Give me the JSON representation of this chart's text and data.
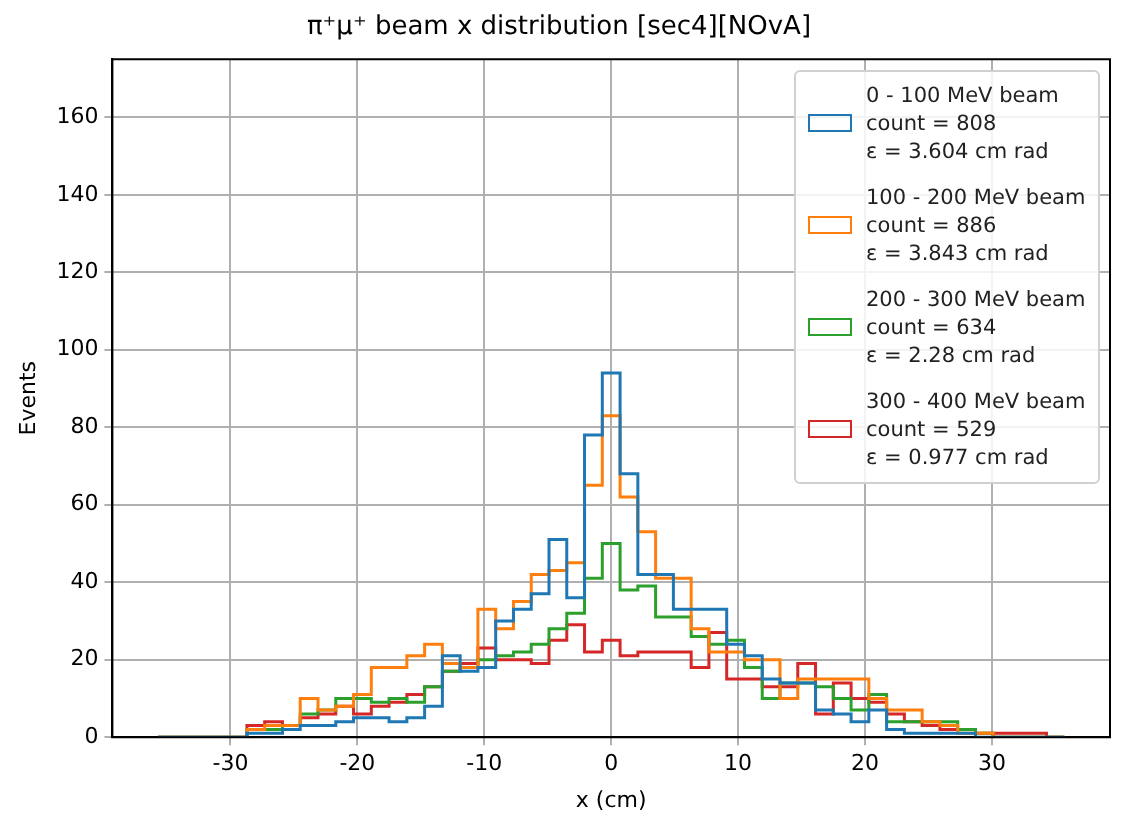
{
  "chart_data": {
    "type": "histogram",
    "title": "π⁺μ⁺ beam x distribution [sec4][NOvA]",
    "xlabel": "x (cm)",
    "ylabel": "Events",
    "bins": [
      -35.7,
      -34.3,
      -32.9,
      -31.5,
      -30.1,
      -28.7,
      -27.3,
      -25.9,
      -24.5,
      -23.1,
      -21.7,
      -20.3,
      -18.9,
      -17.5,
      -16.1,
      -14.7,
      -13.3,
      -11.9,
      -10.5,
      -9.1,
      -7.7,
      -6.3,
      -4.9,
      -3.5,
      -2.1,
      -0.7,
      0.7,
      2.1,
      3.5,
      4.9,
      6.3,
      7.7,
      9.1,
      10.5,
      11.9,
      13.3,
      14.7,
      16.1,
      17.5,
      18.9,
      20.3,
      21.7,
      23.1,
      24.5,
      25.9,
      27.3,
      28.7,
      30.1,
      31.5,
      32.9,
      34.3,
      35.7
    ],
    "series": [
      {
        "name": "0 - 100 MeV beam\ncount = 808\nε = 3.604 cm rad",
        "color": "#1f77b4",
        "values": [
          0,
          0,
          0,
          0,
          0,
          1,
          1,
          2,
          3,
          3,
          4,
          5,
          5,
          4,
          5,
          8,
          21,
          17,
          18,
          30,
          33,
          37,
          51,
          36,
          78,
          94,
          68,
          42,
          42,
          33,
          33,
          33,
          24,
          21,
          15,
          14,
          14,
          7,
          6,
          4,
          7,
          2,
          1,
          1,
          1,
          1,
          0,
          0,
          0,
          0,
          0
        ]
      },
      {
        "name": "100 - 200 MeV beam\ncount = 886\nε = 3.843 cm rad",
        "color": "#ff7f0e",
        "values": [
          0,
          0,
          0,
          0,
          0,
          2,
          3,
          3,
          10,
          7,
          8,
          11,
          18,
          18,
          21,
          24,
          19,
          18,
          33,
          28,
          35,
          42,
          43,
          45,
          65,
          83,
          62,
          53,
          41,
          41,
          28,
          22,
          22,
          20,
          20,
          10,
          15,
          15,
          15,
          15,
          10,
          7,
          7,
          4,
          3,
          1,
          1,
          0,
          0,
          0,
          0
        ]
      },
      {
        "name": "200 - 300 MeV beam\ncount = 634\nε = 2.28 cm rad",
        "color": "#2ca02c",
        "values": [
          0,
          0,
          0,
          0,
          0,
          2,
          2,
          3,
          6,
          7,
          10,
          10,
          9,
          10,
          9,
          13,
          17,
          18,
          20,
          21,
          22,
          24,
          28,
          32,
          41,
          50,
          38,
          39,
          31,
          31,
          26,
          24,
          25,
          18,
          10,
          14,
          14,
          13,
          10,
          7,
          11,
          4,
          4,
          4,
          4,
          2,
          1,
          0,
          0,
          0,
          0
        ]
      },
      {
        "name": "300 - 400 MeV beam\ncount = 529\nε = 0.977 cm rad",
        "color": "#d62728",
        "values": [
          0,
          0,
          0,
          0,
          0,
          3,
          4,
          3,
          5,
          6,
          8,
          6,
          8,
          9,
          11,
          13,
          17,
          19,
          23,
          20,
          20,
          19,
          25,
          29,
          22,
          25,
          21,
          22,
          22,
          22,
          18,
          27,
          15,
          15,
          13,
          13,
          19,
          6,
          14,
          10,
          9,
          6,
          4,
          3,
          2,
          2,
          1,
          1,
          1,
          1,
          0
        ]
      }
    ],
    "xlim": [
      -39.3,
      39.3
    ],
    "ylim": [
      0,
      175
    ],
    "xticks": [
      -30,
      -20,
      -10,
      0,
      10,
      20,
      30
    ],
    "yticks": [
      0,
      20,
      40,
      60,
      80,
      100,
      120,
      140,
      160
    ],
    "grid": true,
    "legend": "top right"
  }
}
